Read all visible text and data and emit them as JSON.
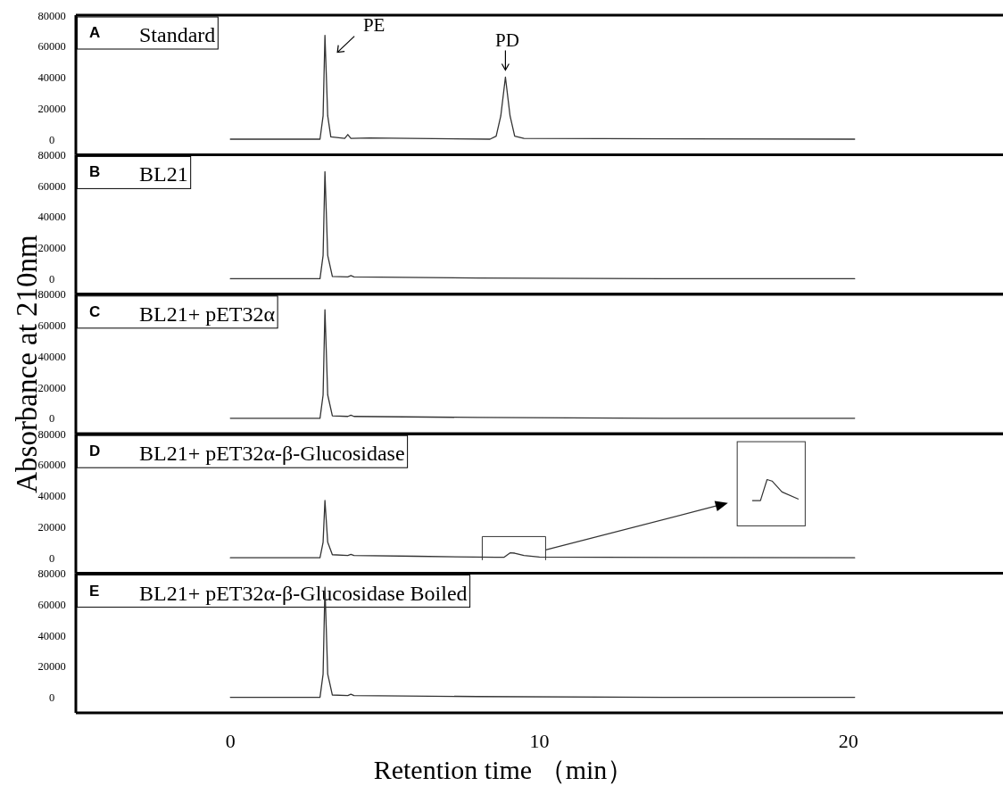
{
  "chart_data": [
    {
      "type": "line",
      "title": "Standard",
      "annotations": [
        "A",
        {
          "text": "PE",
          "x": 3.06,
          "y": 67000
        },
        {
          "text": "PD",
          "x": 8.9,
          "y": 40000
        }
      ],
      "xlim": [
        -5,
        25
      ],
      "ylim": [
        -10000,
        80000
      ],
      "yticks": [
        0,
        20000,
        40000,
        60000,
        80000
      ],
      "tick_labels": "y",
      "color": "#333333",
      "x": [
        0,
        2.9,
        3.0,
        3.06,
        3.15,
        3.25,
        3.7,
        3.8,
        3.9,
        4.5,
        8.4,
        8.6,
        8.75,
        8.9,
        9.05,
        9.2,
        9.5,
        20.2
      ],
      "values": [
        0,
        0,
        15000,
        67000,
        15000,
        1500,
        500,
        3000,
        500,
        800,
        0,
        2000,
        15000,
        40000,
        15000,
        2000,
        500,
        0
      ]
    },
    {
      "type": "line",
      "title": "BL21",
      "annotations": [
        "B"
      ],
      "xlim": [
        -5,
        25
      ],
      "ylim": [
        -10000,
        80000
      ],
      "yticks": [
        0,
        20000,
        40000,
        60000,
        80000
      ],
      "tick_labels": "y",
      "color": "#333333",
      "x": [
        0,
        2.9,
        3.0,
        3.06,
        3.15,
        3.3,
        3.8,
        3.9,
        4.0,
        8,
        14,
        20.2
      ],
      "values": [
        0,
        0,
        15000,
        69000,
        15000,
        1500,
        1200,
        2000,
        1200,
        500,
        0,
        0
      ]
    },
    {
      "type": "line",
      "title": "BL21+ pET32α",
      "ylabel": "Absorbance at 210nm",
      "annotations": [
        "C"
      ],
      "xlim": [
        -5,
        25
      ],
      "ylim": [
        -10000,
        80000
      ],
      "yticks": [
        0,
        20000,
        40000,
        60000,
        80000
      ],
      "tick_labels": "y",
      "color": "#333333",
      "x": [
        0,
        2.9,
        3.0,
        3.06,
        3.15,
        3.3,
        3.8,
        3.9,
        4.0,
        8,
        14,
        20.2
      ],
      "values": [
        0,
        0,
        15000,
        70000,
        15000,
        1500,
        1200,
        2000,
        1200,
        500,
        0,
        0
      ]
    },
    {
      "type": "line",
      "title": "BL21+ pET32α-β-Glucosidase",
      "annotations": [
        "D"
      ],
      "xlim": [
        -5,
        25
      ],
      "ylim": [
        -10000,
        80000
      ],
      "yticks": [
        0,
        20000,
        40000,
        60000,
        80000
      ],
      "tick_labels": "y",
      "color": "#333333",
      "x": [
        0,
        2.9,
        3.0,
        3.06,
        3.15,
        3.3,
        3.8,
        3.9,
        4.0,
        6,
        8.6,
        8.85,
        9.05,
        9.2,
        9.5,
        10,
        12,
        20.2
      ],
      "values": [
        0,
        0,
        10000,
        37000,
        10000,
        2000,
        1500,
        2200,
        1500,
        1000,
        300,
        300,
        3200,
        3000,
        1500,
        500,
        300,
        0
      ]
    },
    {
      "type": "line",
      "title": "BL21+ pET32α-β-Glucosidase Boiled",
      "xlabel": "Retention time （min）",
      "annotations": [
        "E"
      ],
      "xlim": [
        -5,
        25
      ],
      "ylim": [
        -10000,
        80000
      ],
      "xticks": [
        0,
        10,
        20
      ],
      "yticks": [
        0,
        20000,
        40000,
        60000,
        80000
      ],
      "color": "#333333",
      "x": [
        0,
        2.9,
        3.0,
        3.06,
        3.15,
        3.3,
        3.8,
        3.9,
        4.0,
        8,
        14,
        20.2
      ],
      "values": [
        0,
        0,
        15000,
        71000,
        15000,
        1500,
        1200,
        2000,
        1200,
        500,
        0,
        0
      ]
    }
  ]
}
